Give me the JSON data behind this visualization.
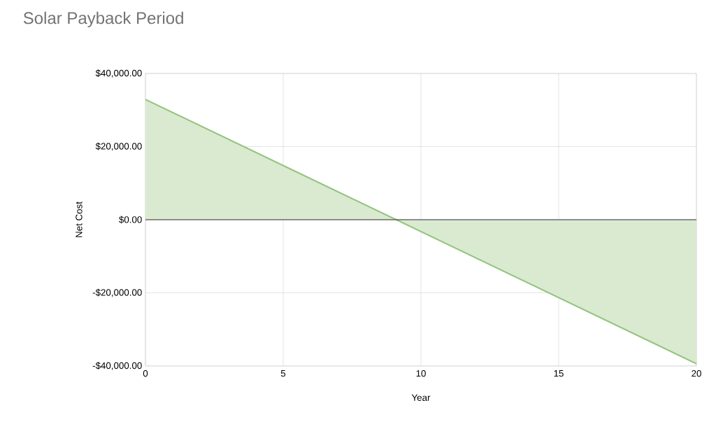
{
  "chart_data": {
    "type": "area",
    "title": "Solar Payback Period",
    "xlabel": "Year",
    "ylabel": "Net Cost",
    "x": [
      0,
      20
    ],
    "series": [
      {
        "color": "#93c47d",
        "values": [
          32900,
          -39400
        ]
      }
    ],
    "xlim": [
      0,
      20
    ],
    "xticks": [
      0,
      5,
      10,
      15,
      20
    ],
    "ylim": [
      -40000,
      40000
    ],
    "yticks": [
      {
        "value": -40000,
        "label": "-$40,000.00"
      },
      {
        "value": -20000,
        "label": "-$20,000.00"
      },
      {
        "value": 0,
        "label": "$0.00"
      },
      {
        "value": 20000,
        "label": "$20,000.00"
      },
      {
        "value": 40000,
        "label": "$40,000.00"
      }
    ],
    "grid": true,
    "ref_lines": [
      {
        "axis": "y",
        "value": 0,
        "color": "#333333"
      }
    ]
  }
}
